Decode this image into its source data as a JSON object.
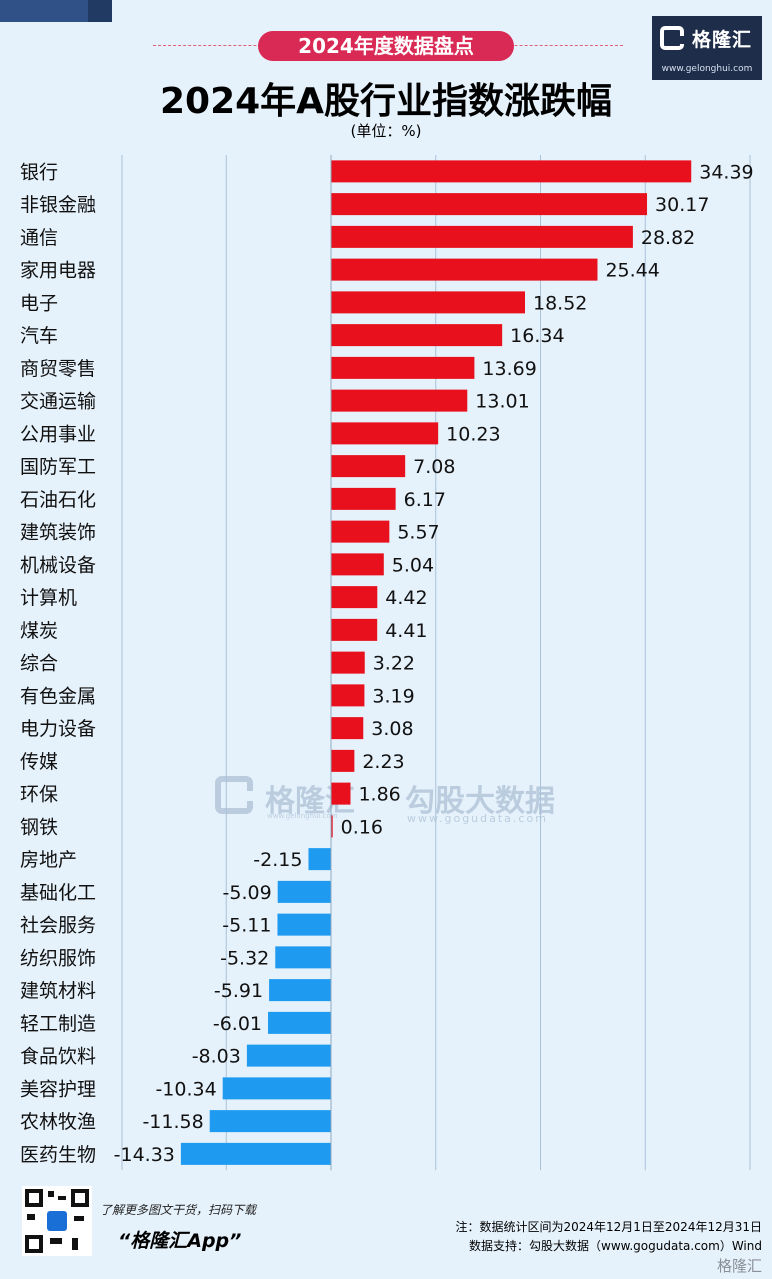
{
  "header": {
    "tagline": "2024年度数据盘点",
    "title": "2024年A股行业指数涨跌幅",
    "unit": "(单位：%)"
  },
  "logo": {
    "name": "格隆汇",
    "url": "www.gelonghui.com"
  },
  "watermark": {
    "brand_a": "格隆汇",
    "brand_b": "勾股大数据",
    "url_a": "www.gelonghui.com",
    "url_b": "www.gogudata.com"
  },
  "footer": {
    "promo": "了解更多图文干货，扫码下载",
    "app_name": "“格隆汇App”",
    "note_period": "注：数据统计区间为2024年12月1日至2024年12月31日",
    "note_source": "数据支持：勾股大数据（www.gogudata.com）Wind",
    "bottom_logo": "格隆汇"
  },
  "colors": {
    "positive": "#e8101c",
    "negative": "#1e9af0",
    "tagline_bg": "#d92a55",
    "background": "#e6f2fb"
  },
  "chart_data": {
    "type": "bar",
    "orientation": "horizontal",
    "categories": [
      "银行",
      "非银金融",
      "通信",
      "家用电器",
      "电子",
      "汽车",
      "商贸零售",
      "交通运输",
      "公用事业",
      "国防军工",
      "石油石化",
      "建筑装饰",
      "机械设备",
      "计算机",
      "煤炭",
      "综合",
      "有色金属",
      "电力设备",
      "传媒",
      "环保",
      "钢铁",
      "房地产",
      "基础化工",
      "社会服务",
      "纺织服饰",
      "建筑材料",
      "轻工制造",
      "食品饮料",
      "美容护理",
      "农林牧渔",
      "医药生物"
    ],
    "values": [
      34.39,
      30.17,
      28.82,
      25.44,
      18.52,
      16.34,
      13.69,
      13.01,
      10.23,
      7.08,
      6.17,
      5.57,
      5.04,
      4.42,
      4.41,
      3.22,
      3.19,
      3.08,
      2.23,
      1.86,
      0.16,
      -2.15,
      -5.09,
      -5.11,
      -5.32,
      -5.91,
      -6.01,
      -8.03,
      -10.34,
      -11.58,
      -14.33
    ],
    "labels": [
      "34.39",
      "30.17",
      "28.82",
      "25.44",
      "18.52",
      "16.34",
      "13.69",
      "13.01",
      "10.23",
      "7.08",
      "6.17",
      "5.57",
      "5.04",
      "4.42",
      "4.41",
      "3.22",
      "3.19",
      "3.08",
      "2.23",
      "1.86",
      "0.16",
      "-2.15",
      "-5.09",
      "-5.11",
      "-5.32",
      "-5.91",
      "-6.01",
      "-8.03",
      "-10.34",
      "-11.58",
      "-14.33"
    ],
    "xlim": [
      -15,
      40
    ],
    "grid": true
  }
}
